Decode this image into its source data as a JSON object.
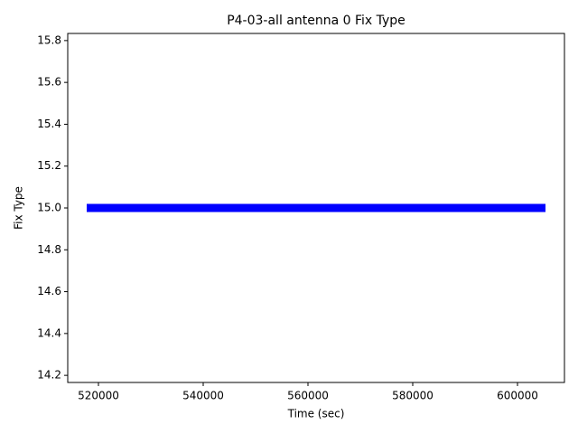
{
  "chart_data": {
    "type": "line",
    "title": "P4-03-all antenna 0 Fix Type",
    "x_label": "Time (sec)",
    "y_label": "Fix Type",
    "x": [
      517760,
      605345
    ],
    "series": [
      {
        "name": "Fix Type",
        "color": "#0000ff",
        "values": [
          15,
          15
        ]
      }
    ],
    "xlim": [
      514138,
      608966
    ],
    "xticks": [
      520000,
      540000,
      560000,
      580000,
      600000
    ],
    "ylim": [
      14.166,
      15.834
    ],
    "yticks": [
      14.2,
      14.4,
      14.6,
      14.8,
      {
        "value": 15,
        "label": "15.0"
      },
      15.2,
      15.4,
      15.6,
      15.8
    ],
    "grid": false
  }
}
